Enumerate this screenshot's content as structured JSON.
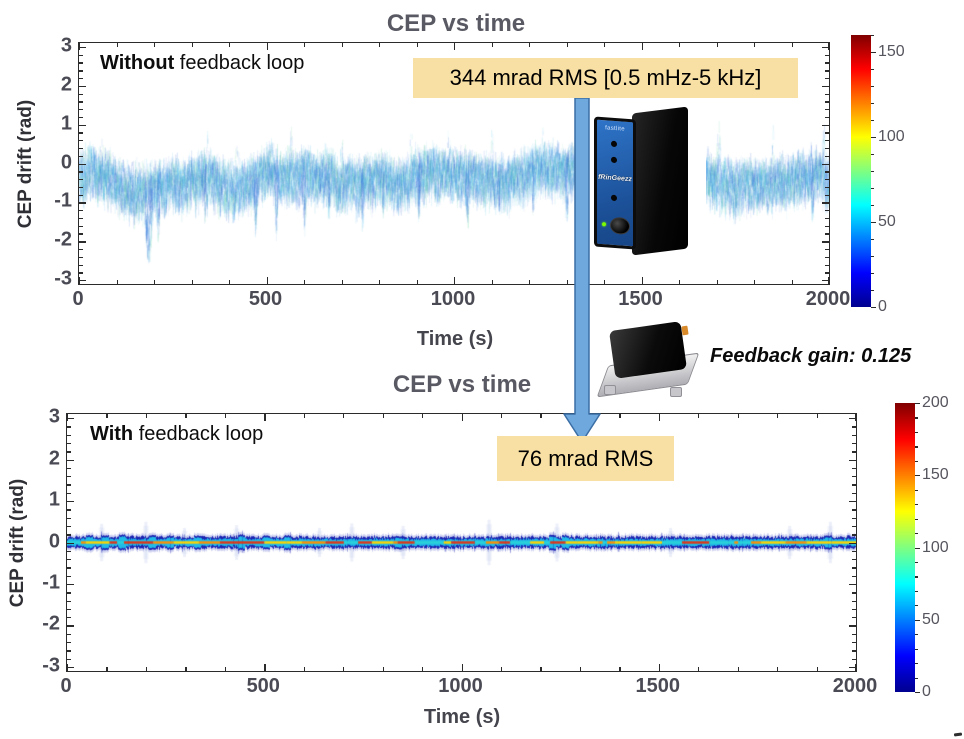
{
  "colors": {
    "arrow_fill": "#6FA8DC",
    "arrow_stroke": "#3A6EA5",
    "annotation_bg": "#F8E0A4",
    "title_color": "#595963",
    "frame_color": "#2b2b2b",
    "device_panel_blue": "#1E5FAE"
  },
  "middle": {
    "feedback_gain": "Feedback gain: 0.125"
  },
  "devices": {
    "fringeezz": {
      "brand": "fastlite",
      "model": "fRinGeezz"
    }
  },
  "stray_mark": "",
  "chart_data": [
    {
      "id": "top",
      "type": "heatmap",
      "title": "CEP vs time",
      "label_bold": "Without",
      "label_rest": " feedback loop",
      "xlabel": "Time (s)",
      "ylabel": "CEP drift (rad)",
      "annotation": "344 mrad RMS [0.5 mHz-5 kHz]",
      "rms_mrad": 344,
      "rms_bandwidth": "0.5 mHz-5 kHz",
      "xlim": [
        0,
        2000
      ],
      "ylim": [
        -3,
        3
      ],
      "y_range": [
        -3.1,
        3.1
      ],
      "x_ticks": [
        0,
        500,
        1000,
        1500,
        2000
      ],
      "x_minor_step": 100,
      "y_ticks": [
        3,
        2,
        1,
        0,
        -1,
        -2,
        -3
      ],
      "y_minor_step": 0.2,
      "colorbar": {
        "min": 0,
        "max": 160,
        "ticks": [
          150,
          100,
          50,
          0
        ],
        "minor_step": 10,
        "colormap": "jet"
      },
      "band": {
        "seed": 42,
        "center_mean": -0.18,
        "wander_amp": [
          0.16,
          0.1,
          0.07
        ],
        "halfwidth_up": 0.34,
        "halfwidth_down": 0.46,
        "down_spikes": [
          [
            185,
            -2.55,
            14
          ],
          [
            210,
            -2.0,
            7
          ],
          [
            335,
            -1.4,
            6
          ],
          [
            470,
            -1.75,
            7
          ],
          [
            525,
            -1.9,
            5
          ],
          [
            600,
            -1.65,
            7
          ],
          [
            665,
            -1.4,
            5
          ],
          [
            755,
            -1.7,
            6
          ],
          [
            810,
            -1.3,
            5
          ],
          [
            905,
            -1.4,
            6
          ],
          [
            1035,
            -1.5,
            7
          ],
          [
            1120,
            -1.35,
            5
          ],
          [
            1210,
            -1.25,
            5
          ],
          [
            1300,
            -1.45,
            6
          ],
          [
            1430,
            -1.2,
            5
          ],
          [
            1535,
            -1.3,
            4
          ],
          [
            1655,
            -1.35,
            5
          ],
          [
            1750,
            -1.15,
            4
          ],
          [
            1845,
            -1.25,
            5
          ],
          [
            1905,
            -1.1,
            4
          ],
          [
            1955,
            -1.45,
            6
          ]
        ],
        "up_spikes": [
          [
            60,
            0.8,
            5
          ],
          [
            340,
            0.9,
            5
          ],
          [
            420,
            0.8,
            4
          ],
          [
            565,
            0.95,
            4
          ],
          [
            700,
            0.85,
            4
          ],
          [
            885,
            0.9,
            5
          ],
          [
            985,
            1.0,
            4
          ],
          [
            1100,
            0.85,
            4
          ],
          [
            1235,
            0.9,
            4
          ],
          [
            1420,
            0.85,
            4
          ],
          [
            1565,
            0.95,
            4
          ],
          [
            1705,
            1.0,
            5
          ],
          [
            1850,
            0.95,
            4
          ],
          [
            1985,
            1.05,
            5
          ]
        ]
      }
    },
    {
      "id": "bottom",
      "type": "heatmap",
      "title": "CEP vs time",
      "label_bold": "With",
      "label_rest": " feedback loop",
      "xlabel": "Time (s)",
      "ylabel": "CEP drift (rad)",
      "annotation": "76 mrad RMS",
      "rms_mrad": 76,
      "xlim": [
        0,
        2000
      ],
      "ylim": [
        -3,
        3
      ],
      "y_range": [
        -3.1,
        3.1
      ],
      "x_ticks": [
        0,
        500,
        1000,
        1500,
        2000
      ],
      "x_minor_step": 100,
      "y_ticks": [
        3,
        2,
        1,
        0,
        -1,
        -2,
        -3
      ],
      "y_minor_step": 0.2,
      "colorbar": {
        "min": 0,
        "max": 200,
        "ticks": [
          200,
          150,
          100,
          50,
          0
        ],
        "minor_step": 10,
        "colormap": "jet"
      },
      "band": {
        "seed": 7,
        "center": 0.0,
        "envelope_rad": 0.13,
        "core_rad": 0.075,
        "core_colors": [
          "#ffd400",
          "#ff9000",
          "#e23515",
          "#2ad2d8"
        ],
        "core_color_weights": [
          0.32,
          0.26,
          0.17,
          0.25
        ],
        "blobs": [
          [
            55,
            0.13
          ],
          [
            95,
            0.13
          ],
          [
            140,
            0.14
          ],
          [
            215,
            0.13
          ],
          [
            262,
            0.12
          ],
          [
            330,
            0.12
          ],
          [
            440,
            0.14
          ],
          [
            505,
            0.12
          ],
          [
            558,
            0.13
          ],
          [
            840,
            0.11
          ],
          [
            1230,
            0.14
          ],
          [
            1262,
            0.13
          ],
          [
            1930,
            0.12
          ]
        ],
        "faint_spikes": [
          [
            88,
            0.45
          ],
          [
            200,
            0.5
          ],
          [
            298,
            0.35
          ],
          [
            430,
            0.42
          ],
          [
            640,
            0.35
          ],
          [
            722,
            0.46
          ],
          [
            852,
            0.4
          ],
          [
            1070,
            0.55
          ],
          [
            1242,
            0.46
          ],
          [
            1530,
            0.35
          ],
          [
            1832,
            0.4
          ],
          [
            1935,
            0.5
          ]
        ]
      }
    }
  ]
}
